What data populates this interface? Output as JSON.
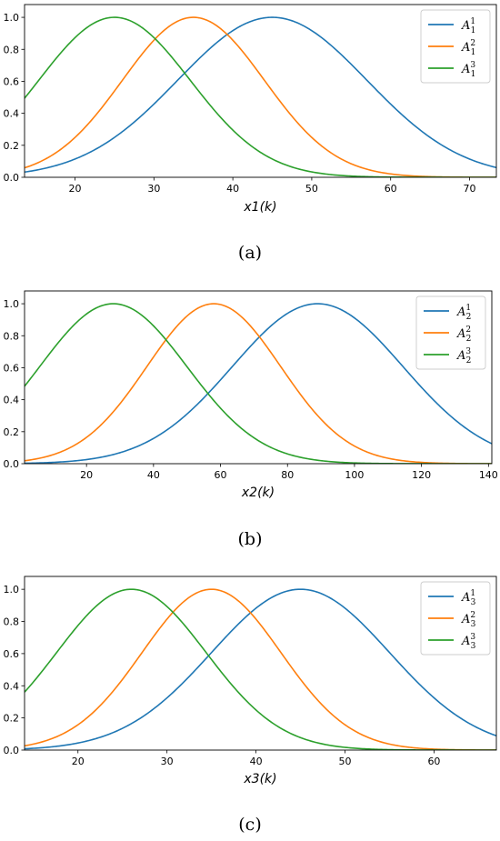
{
  "chart_data": [
    {
      "type": "line",
      "xlabel": "x1(k)",
      "caption": "(a)",
      "xlim": [
        13.6,
        73.4
      ],
      "ylim": [
        0,
        1.08
      ],
      "xticks": [
        20,
        30,
        40,
        50,
        60,
        70
      ],
      "yticks": [
        0.0,
        0.2,
        0.4,
        0.6,
        0.8,
        1.0
      ],
      "legend_position": "top-right",
      "series": [
        {
          "name": "A_1^1",
          "base": "A",
          "sub": "1",
          "sup": "1",
          "color": "#1f77b4",
          "center": 45,
          "sigma": 12
        },
        {
          "name": "A_1^2",
          "base": "A",
          "sub": "1",
          "sup": "2",
          "color": "#ff7f0e",
          "center": 35,
          "sigma": 9
        },
        {
          "name": "A_1^3",
          "base": "A",
          "sub": "1",
          "sup": "3",
          "color": "#2ca02c",
          "center": 25,
          "sigma": 9.6
        }
      ]
    },
    {
      "type": "line",
      "xlabel": "x2(k)",
      "caption": "(b)",
      "xlim": [
        1.5,
        141
      ],
      "ylim": [
        0,
        1.08
      ],
      "xticks": [
        20,
        40,
        60,
        80,
        100,
        120,
        140
      ],
      "yticks": [
        0.0,
        0.2,
        0.4,
        0.6,
        0.8,
        1.0
      ],
      "legend_position": "top-right",
      "series": [
        {
          "name": "A_2^1",
          "base": "A",
          "sub": "2",
          "sup": "1",
          "color": "#1f77b4",
          "center": 89,
          "sigma": 25.5
        },
        {
          "name": "A_2^2",
          "base": "A",
          "sub": "2",
          "sup": "2",
          "color": "#ff7f0e",
          "center": 58,
          "sigma": 20
        },
        {
          "name": "A_2^3",
          "base": "A",
          "sub": "2",
          "sup": "3",
          "color": "#2ca02c",
          "center": 28,
          "sigma": 22
        }
      ]
    },
    {
      "type": "line",
      "xlabel": "x3(k)",
      "caption": "(c)",
      "xlim": [
        14,
        67
      ],
      "ylim": [
        0,
        1.08
      ],
      "xticks": [
        20,
        30,
        40,
        50,
        60
      ],
      "yticks": [
        0.0,
        0.2,
        0.4,
        0.6,
        0.8,
        1.0
      ],
      "legend_position": "top-right",
      "series": [
        {
          "name": "A_3^1",
          "base": "A",
          "sub": "3",
          "sup": "1",
          "color": "#1f77b4",
          "center": 45,
          "sigma": 10
        },
        {
          "name": "A_3^2",
          "base": "A",
          "sub": "3",
          "sup": "2",
          "color": "#ff7f0e",
          "center": 35,
          "sigma": 7.8
        },
        {
          "name": "A_3^3",
          "base": "A",
          "sub": "3",
          "sup": "3",
          "color": "#2ca02c",
          "center": 26,
          "sigma": 8.4
        }
      ]
    }
  ]
}
